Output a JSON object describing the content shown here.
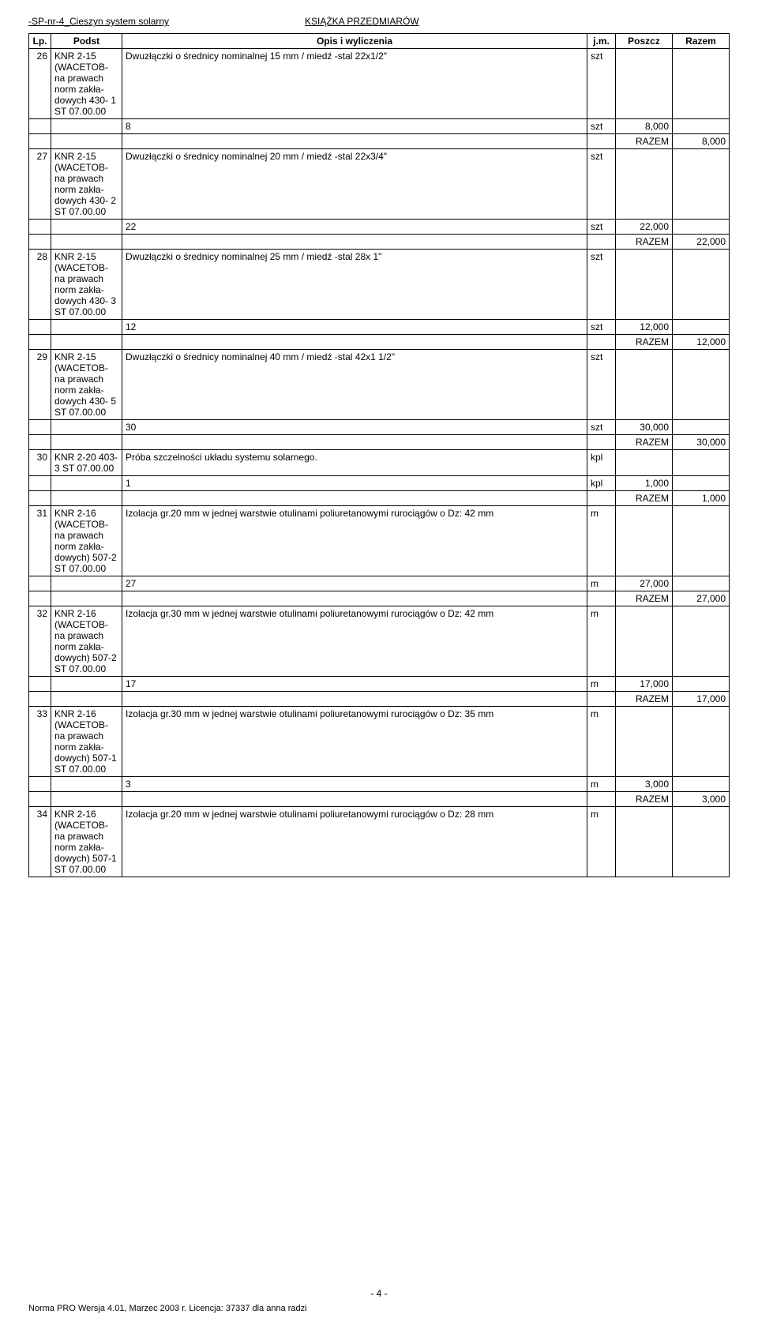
{
  "header": {
    "left": "-SP-nr-4_Cieszyn system solarny",
    "right": "KSIĄŻKA PRZEDMIARÓW"
  },
  "table": {
    "columns": [
      "Lp.",
      "Podst",
      "Opis i wyliczenia",
      "j.m.",
      "Poszcz",
      "Razem"
    ]
  },
  "rows": [
    {
      "lp": "26",
      "podst": "KNR 2-15 (WACETOB- na prawach norm zakła- dowych 430- 1 ST 07.00.00",
      "opis": "Dwuzłączki o średnicy nominalnej 15 mm /  miedź -stal  22x1/2\"",
      "jm": "szt",
      "calc": "8",
      "calc_jm": "szt",
      "poszcz": "8,000",
      "razem": "8,000"
    },
    {
      "lp": "27",
      "podst": "KNR 2-15 (WACETOB- na prawach norm zakła- dowych 430- 2 ST 07.00.00",
      "opis": "Dwuzłączki o średnicy nominalnej 20 mm  /  miedź -stal  22x3/4\"",
      "jm": "szt",
      "calc": "22",
      "calc_jm": "szt",
      "poszcz": "22,000",
      "razem": "22,000"
    },
    {
      "lp": "28",
      "podst": "KNR 2-15 (WACETOB- na prawach norm zakła- dowych 430- 3 ST 07.00.00",
      "opis": "Dwuzłączki o średnicy nominalnej 25 mm /  miedź -stal  28x 1\"",
      "jm": "szt",
      "calc": "12",
      "calc_jm": "szt",
      "poszcz": "12,000",
      "razem": "12,000"
    },
    {
      "lp": "29",
      "podst": "KNR 2-15 (WACETOB- na prawach norm zakła- dowych 430- 5 ST 07.00.00",
      "opis": "Dwuzłączki o średnicy nominalnej 40 mm /  miedź -stal  42x1 1/2\"",
      "jm": "szt",
      "calc": "30",
      "calc_jm": "szt",
      "poszcz": "30,000",
      "razem": "30,000"
    },
    {
      "lp": "30",
      "podst": "KNR 2-20 403-3 ST 07.00.00",
      "opis": "Próba szczelności układu systemu solarnego.",
      "jm": "kpl",
      "calc": "1",
      "calc_jm": "kpl",
      "poszcz": "1,000",
      "razem": "1,000"
    },
    {
      "lp": "31",
      "podst": "KNR 2-16 (WACETOB- na prawach norm zakła- dowych) 507-2 ST 07.00.00",
      "opis": "Izolacja gr.20 mm w jednej warstwie otulinami poliuretanowymi  rurociągów o Dz: 42 mm",
      "jm": "m",
      "calc": "27",
      "calc_jm": "m",
      "poszcz": "27,000",
      "razem": "27,000"
    },
    {
      "lp": "32",
      "podst": "KNR 2-16 (WACETOB- na prawach norm zakła- dowych) 507-2 ST 07.00.00",
      "opis": "Izolacja gr.30 mm w jednej warstwie otulinami poliuretanowymi  rurociągów o Dz: 42 mm",
      "jm": "m",
      "calc": "17",
      "calc_jm": "m",
      "poszcz": "17,000",
      "razem": "17,000"
    },
    {
      "lp": "33",
      "podst": "KNR 2-16 (WACETOB- na prawach norm zakła- dowych) 507-1 ST 07.00.00",
      "opis": "Izolacja gr.30 mm w jednej warstwie otulinami poliuretanowymi  rurociągów o Dz: 35 mm",
      "jm": "m",
      "calc": "3",
      "calc_jm": "m",
      "poszcz": "3,000",
      "razem": "3,000"
    },
    {
      "lp": "34",
      "podst": "KNR 2-16 (WACETOB- na prawach norm zakła- dowych) 507-1 ST 07.00.00",
      "opis": "Izolacja gr.20 mm w jednej warstwie otulinami poliuretanowymi  rurociągów o Dz: 28 mm",
      "jm": "m",
      "calc": null,
      "calc_jm": null,
      "poszcz": null,
      "razem": null
    }
  ],
  "razem_label": "RAZEM",
  "page_number": "- 4 -",
  "footer": "Norma PRO Wersja 4.01, Marzec 2003 r. Licencja: 37337 dla anna radzi"
}
